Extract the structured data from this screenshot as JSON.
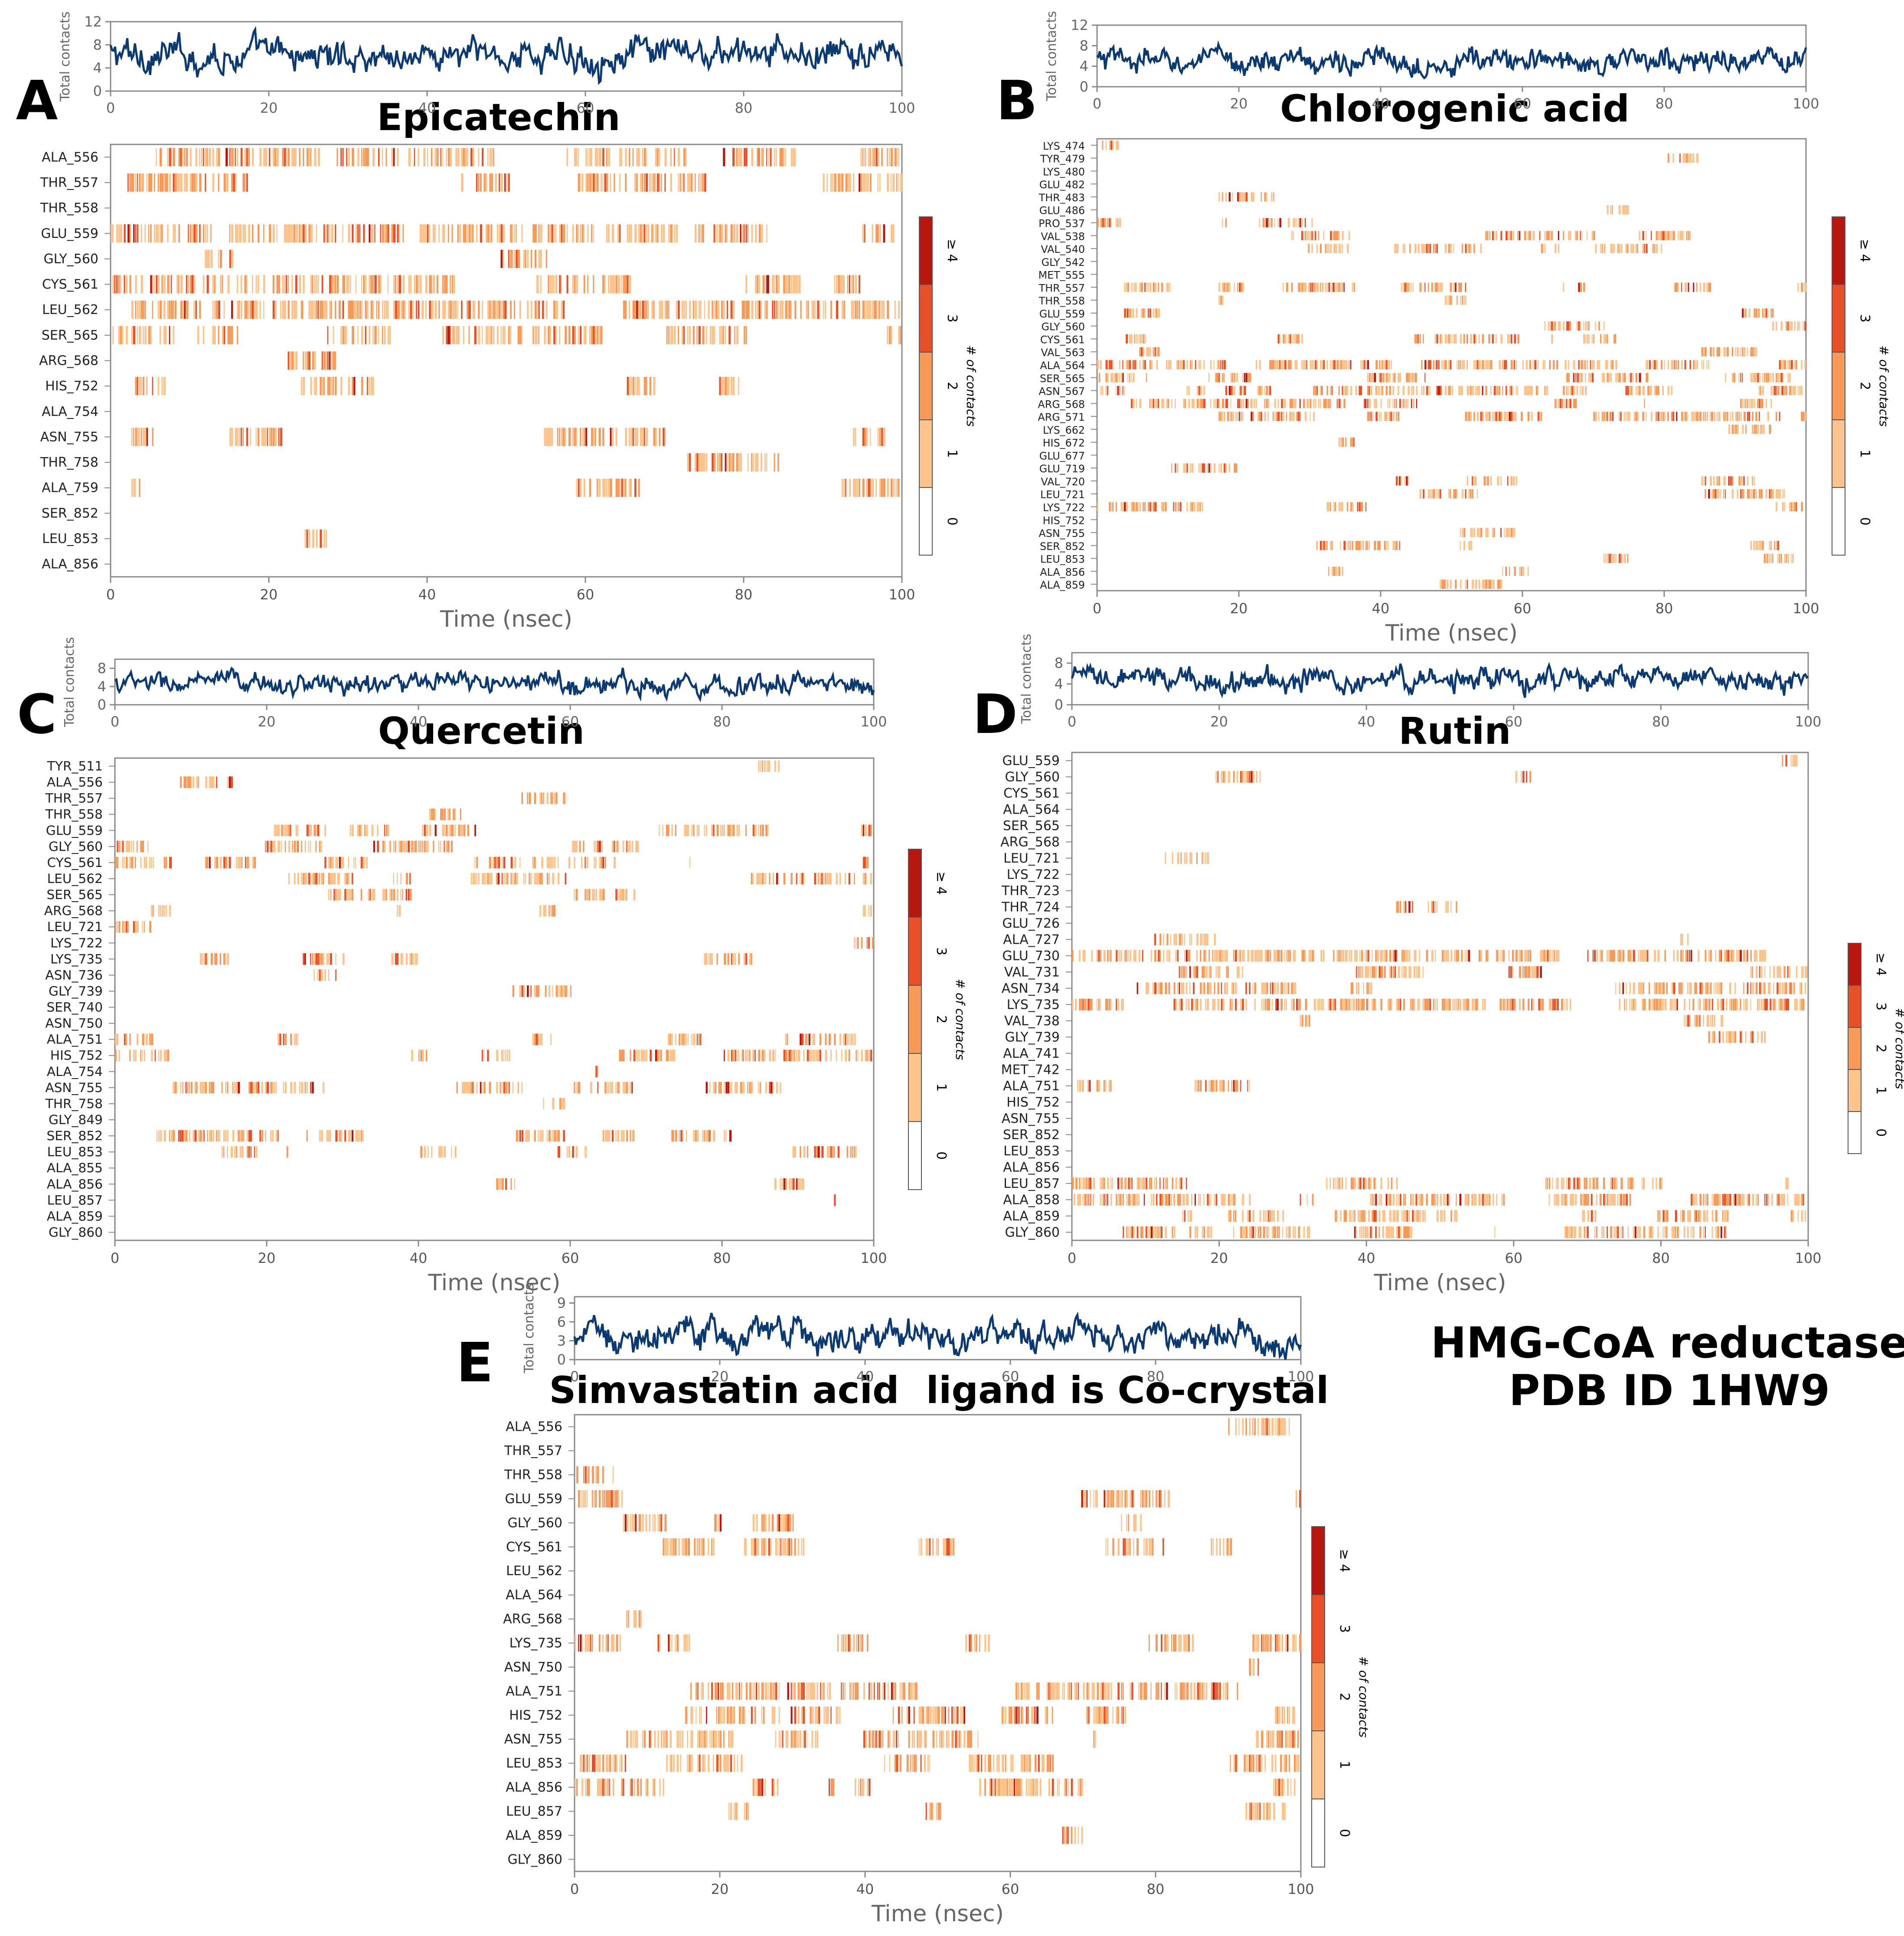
{
  "figure": {
    "top_right_note": {
      "line1": "HMG-CoA reductase",
      "line2": "PDB ID  1HW9"
    },
    "colors": {
      "timeline": "#0b3a73",
      "c1": "#fcc48c",
      "c2": "#f79a59",
      "c3": "#e8502a",
      "c4": "#b8170f"
    },
    "panels": [
      {
        "letter": "A",
        "title": "Epicatechin",
        "subtitle": "",
        "timeline_ylabel": "Total contacts",
        "timeline_yticks": [
          0,
          4,
          8,
          12
        ],
        "timeline_ymax": 12,
        "timeline_mean": 6.2,
        "timeline_sd": 1.8,
        "x_ticks": [
          0,
          20,
          40,
          60,
          80,
          100
        ],
        "x_label": "Time (nsec)",
        "colorbar_label": "# of contacts",
        "colorbar_levels": [
          "0",
          "1",
          "2",
          "3",
          "≥ 4"
        ],
        "residues": [
          "ALA_556",
          "THR_557",
          "THR_558",
          "GLU_559",
          "GLY_560",
          "CYS_561",
          "LEU_562",
          "SER_565",
          "ARG_568",
          "HIS_752",
          "ALA_754",
          "ASN_755",
          "THR_758",
          "ALA_759",
          "SER_852",
          "LEU_853",
          "ALA_856"
        ],
        "occupancy": [
          0.55,
          0.5,
          0.03,
          0.85,
          0.15,
          0.8,
          0.85,
          0.5,
          0.04,
          0.3,
          0.02,
          0.35,
          0.08,
          0.06,
          0.04,
          0.05,
          0.03
        ]
      },
      {
        "letter": "B",
        "title": "Chlorogenic acid",
        "subtitle": "",
        "timeline_ylabel": "Total contacts",
        "timeline_yticks": [
          0,
          4,
          8,
          12
        ],
        "timeline_ymax": 12,
        "timeline_mean": 5.0,
        "timeline_sd": 1.5,
        "x_ticks": [
          0,
          20,
          40,
          60,
          80,
          100
        ],
        "x_label": "Time (nsec)",
        "colorbar_label": "# of contacts",
        "colorbar_levels": [
          "0",
          "1",
          "2",
          "3",
          "≥ 4"
        ],
        "residues": [
          "LYS_474",
          "TYR_479",
          "LYS_480",
          "GLU_482",
          "THR_483",
          "GLU_486",
          "PRO_537",
          "VAL_538",
          "VAL_540",
          "GLY_542",
          "MET_555",
          "THR_557",
          "THR_558",
          "GLU_559",
          "GLY_560",
          "CYS_561",
          "VAL_563",
          "ALA_564",
          "SER_565",
          "ASN_567",
          "ARG_568",
          "ARG_571",
          "LYS_662",
          "HIS_672",
          "GLU_677",
          "GLU_719",
          "VAL_720",
          "LEU_721",
          "LYS_722",
          "HIS_752",
          "ASN_755",
          "SER_852",
          "LEU_853",
          "ALA_856",
          "ALA_859"
        ],
        "occupancy": [
          0.02,
          0.02,
          0.02,
          0.02,
          0.02,
          0.02,
          0.15,
          0.2,
          0.25,
          0.05,
          0.05,
          0.3,
          0.1,
          0.2,
          0.25,
          0.3,
          0.25,
          0.45,
          0.35,
          0.5,
          0.55,
          0.6,
          0.03,
          0.03,
          0.05,
          0.05,
          0.12,
          0.1,
          0.15,
          0.05,
          0.04,
          0.15,
          0.1,
          0.03,
          0.03
        ]
      },
      {
        "letter": "C",
        "title": "Quercetin",
        "subtitle": "",
        "timeline_ylabel": "Total contacts",
        "timeline_yticks": [
          0,
          4,
          8
        ],
        "timeline_ymax": 10,
        "timeline_mean": 4.6,
        "timeline_sd": 1.5,
        "x_ticks": [
          0,
          20,
          40,
          60,
          80,
          100
        ],
        "x_label": "Time (nsec)",
        "colorbar_label": "# of contacts",
        "colorbar_levels": [
          "0",
          "1",
          "2",
          "3",
          "≥ 4"
        ],
        "residues": [
          "TYR_511",
          "ALA_556",
          "THR_557",
          "THR_558",
          "GLU_559",
          "GLY_560",
          "CYS_561",
          "LEU_562",
          "SER_565",
          "ARG_568",
          "LEU_721",
          "LYS_722",
          "LYS_735",
          "ASN_736",
          "GLY_739",
          "SER_740",
          "ASN_750",
          "ALA_751",
          "HIS_752",
          "ALA_754",
          "ASN_755",
          "THR_758",
          "GLY_849",
          "SER_852",
          "LEU_853",
          "ALA_855",
          "ALA_856",
          "LEU_857",
          "ALA_859",
          "GLY_860"
        ],
        "occupancy": [
          0.02,
          0.1,
          0.1,
          0.08,
          0.4,
          0.35,
          0.3,
          0.25,
          0.3,
          0.3,
          0.03,
          0.03,
          0.08,
          0.02,
          0.02,
          0.02,
          0.02,
          0.3,
          0.45,
          0.03,
          0.5,
          0.05,
          0.05,
          0.2,
          0.35,
          0.05,
          0.1,
          0.05,
          0.03,
          0.03
        ]
      },
      {
        "letter": "D",
        "title": "Rutin",
        "subtitle": "",
        "timeline_ylabel": "Total contacts",
        "timeline_yticks": [
          0,
          4,
          8
        ],
        "timeline_ymax": 10,
        "timeline_mean": 4.8,
        "timeline_sd": 1.5,
        "x_ticks": [
          0,
          20,
          40,
          60,
          80,
          100
        ],
        "x_label": "Time (nsec)",
        "colorbar_label": "# of contacts",
        "colorbar_levels": [
          "0",
          "1",
          "2",
          "3",
          "≥ 4"
        ],
        "residues": [
          "GLU_559",
          "GLY_560",
          "CYS_561",
          "ALA_564",
          "SER_565",
          "ARG_568",
          "LEU_721",
          "LYS_722",
          "THR_723",
          "THR_724",
          "GLU_726",
          "ALA_727",
          "GLU_730",
          "VAL_731",
          "ASN_734",
          "LYS_735",
          "VAL_738",
          "GLY_739",
          "ALA_741",
          "MET_742",
          "ALA_751",
          "HIS_752",
          "ASN_755",
          "SER_852",
          "LEU_853",
          "ALA_856",
          "LEU_857",
          "ALA_858",
          "ALA_859",
          "GLY_860"
        ],
        "occupancy": [
          0.04,
          0.05,
          0.02,
          0.03,
          0.04,
          0.04,
          0.02,
          0.02,
          0.02,
          0.02,
          0.03,
          0.05,
          0.75,
          0.3,
          0.6,
          0.65,
          0.15,
          0.12,
          0.05,
          0.03,
          0.03,
          0.03,
          0.03,
          0.02,
          0.03,
          0.05,
          0.5,
          0.4,
          0.35,
          0.25
        ]
      },
      {
        "letter": "E",
        "title": "Simvastatin acid",
        "subtitle": "ligand is Co-crystal",
        "timeline_ylabel": "Total contacts",
        "timeline_yticks": [
          0,
          3,
          6,
          9
        ],
        "timeline_ymax": 10,
        "timeline_mean": 3.8,
        "timeline_sd": 1.6,
        "x_ticks": [
          0,
          20,
          40,
          60,
          80,
          100
        ],
        "x_label": "Time (nsec)",
        "colorbar_label": "# of contacts",
        "colorbar_levels": [
          "0",
          "1",
          "2",
          "3",
          "≥ 4"
        ],
        "residues": [
          "ALA_556",
          "THR_557",
          "THR_558",
          "GLU_559",
          "GLY_560",
          "CYS_561",
          "LEU_562",
          "ALA_564",
          "ARG_568",
          "LYS_735",
          "ASN_750",
          "ALA_751",
          "HIS_752",
          "ASN_755",
          "LEU_853",
          "ALA_856",
          "LEU_857",
          "ALA_859",
          "GLY_860"
        ],
        "occupancy": [
          0.02,
          0.03,
          0.02,
          0.25,
          0.12,
          0.15,
          0.04,
          0.02,
          0.02,
          0.3,
          0.03,
          0.45,
          0.35,
          0.55,
          0.3,
          0.4,
          0.12,
          0.03,
          0.05
        ]
      }
    ]
  },
  "chart_data": [
    {
      "type": "heatmap",
      "title": "Epicatechin",
      "xlabel": "Time (nsec)",
      "ylabel": "",
      "xlim": [
        0,
        100
      ],
      "timeline": {
        "ylabel": "Total contacts",
        "ylim": [
          0,
          12
        ],
        "approx_mean": 6.2
      },
      "categories": [
        "ALA_556",
        "THR_557",
        "THR_558",
        "GLU_559",
        "GLY_560",
        "CYS_561",
        "LEU_562",
        "SER_565",
        "ARG_568",
        "HIS_752",
        "ALA_754",
        "ASN_755",
        "THR_758",
        "ALA_759",
        "SER_852",
        "LEU_853",
        "ALA_856"
      ],
      "colorbar": {
        "label": "# of contacts",
        "levels": [
          "0",
          "1",
          "2",
          "3",
          "≥ 4"
        ]
      }
    },
    {
      "type": "heatmap",
      "title": "Chlorogenic acid",
      "xlabel": "Time (nsec)",
      "ylabel": "",
      "xlim": [
        0,
        100
      ],
      "timeline": {
        "ylabel": "Total contacts",
        "ylim": [
          0,
          12
        ],
        "approx_mean": 5.0
      },
      "categories": [
        "LYS_474",
        "TYR_479",
        "LYS_480",
        "GLU_482",
        "THR_483",
        "GLU_486",
        "PRO_537",
        "VAL_538",
        "VAL_540",
        "GLY_542",
        "MET_555",
        "THR_557",
        "THR_558",
        "GLU_559",
        "GLY_560",
        "CYS_561",
        "VAL_563",
        "ALA_564",
        "SER_565",
        "ASN_567",
        "ARG_568",
        "ARG_571",
        "LYS_662",
        "HIS_672",
        "GLU_677",
        "GLU_719",
        "VAL_720",
        "LEU_721",
        "LYS_722",
        "HIS_752",
        "ASN_755",
        "SER_852",
        "LEU_853",
        "ALA_856",
        "ALA_859"
      ],
      "colorbar": {
        "label": "# of contacts",
        "levels": [
          "0",
          "1",
          "2",
          "3",
          "≥ 4"
        ]
      }
    },
    {
      "type": "heatmap",
      "title": "Quercetin",
      "xlabel": "Time (nsec)",
      "ylabel": "",
      "xlim": [
        0,
        100
      ],
      "timeline": {
        "ylabel": "Total contacts",
        "ylim": [
          0,
          10
        ],
        "approx_mean": 4.6
      },
      "categories": [
        "TYR_511",
        "ALA_556",
        "THR_557",
        "THR_558",
        "GLU_559",
        "GLY_560",
        "CYS_561",
        "LEU_562",
        "SER_565",
        "ARG_568",
        "LEU_721",
        "LYS_722",
        "LYS_735",
        "ASN_736",
        "GLY_739",
        "SER_740",
        "ASN_750",
        "ALA_751",
        "HIS_752",
        "ALA_754",
        "ASN_755",
        "THR_758",
        "GLY_849",
        "SER_852",
        "LEU_853",
        "ALA_855",
        "ALA_856",
        "LEU_857",
        "ALA_859",
        "GLY_860"
      ],
      "colorbar": {
        "label": "# of contacts",
        "levels": [
          "0",
          "1",
          "2",
          "3",
          "≥ 4"
        ]
      }
    },
    {
      "type": "heatmap",
      "title": "Rutin",
      "xlabel": "Time (nsec)",
      "ylabel": "",
      "xlim": [
        0,
        100
      ],
      "timeline": {
        "ylabel": "Total contacts",
        "ylim": [
          0,
          10
        ],
        "approx_mean": 4.8
      },
      "categories": [
        "GLU_559",
        "GLY_560",
        "CYS_561",
        "ALA_564",
        "SER_565",
        "ARG_568",
        "LEU_721",
        "LYS_722",
        "THR_723",
        "THR_724",
        "GLU_726",
        "ALA_727",
        "GLU_730",
        "VAL_731",
        "ASN_734",
        "LYS_735",
        "VAL_738",
        "GLY_739",
        "ALA_741",
        "MET_742",
        "ALA_751",
        "HIS_752",
        "ASN_755",
        "SER_852",
        "LEU_853",
        "ALA_856",
        "LEU_857",
        "ALA_858",
        "ALA_859",
        "GLY_860"
      ],
      "colorbar": {
        "label": "# of contacts",
        "levels": [
          "0",
          "1",
          "2",
          "3",
          "≥ 4"
        ]
      }
    },
    {
      "type": "heatmap",
      "title": "Simvastatin acid",
      "subtitle": "ligand is Co-crystal",
      "xlabel": "Time (nsec)",
      "ylabel": "",
      "xlim": [
        0,
        100
      ],
      "timeline": {
        "ylabel": "Total contacts",
        "ylim": [
          0,
          10
        ],
        "approx_mean": 3.8
      },
      "categories": [
        "ALA_556",
        "THR_557",
        "THR_558",
        "GLU_559",
        "GLY_560",
        "CYS_561",
        "LEU_562",
        "ALA_564",
        "ARG_568",
        "LYS_735",
        "ASN_750",
        "ALA_751",
        "HIS_752",
        "ASN_755",
        "LEU_853",
        "ALA_856",
        "LEU_857",
        "ALA_859",
        "GLY_860"
      ],
      "colorbar": {
        "label": "# of contacts",
        "levels": [
          "0",
          "1",
          "2",
          "3",
          "≥ 4"
        ]
      }
    }
  ]
}
